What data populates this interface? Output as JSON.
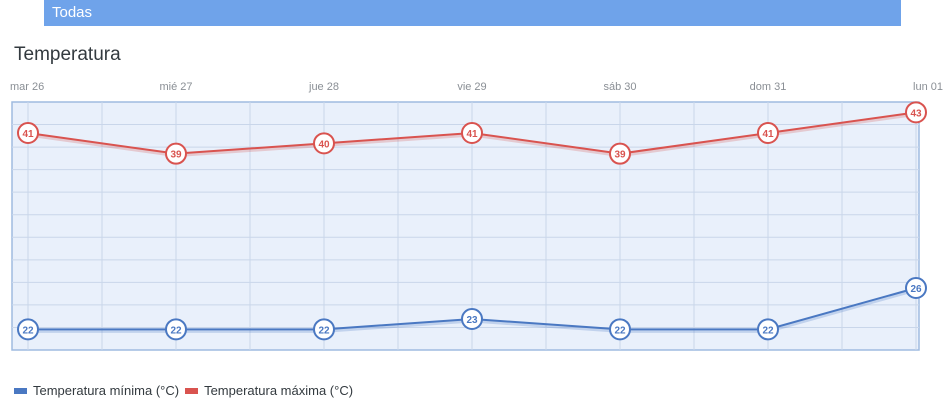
{
  "filter": {
    "label": "Todas"
  },
  "section_title": "Temperatura",
  "chart_data": {
    "type": "line",
    "title": "",
    "categories": [
      "mar 26",
      "mié 27",
      "jue 28",
      "vie 29",
      "sáb 30",
      "dom 31",
      "lun 01"
    ],
    "ylim": [
      20,
      44
    ],
    "grid": true,
    "legend_position": "bottom-left",
    "series": [
      {
        "name": "Temperatura mínima (°C)",
        "color": "#4a78c2",
        "values": [
          22,
          22,
          22,
          23,
          22,
          22,
          26
        ]
      },
      {
        "name": "Temperatura máxima (°C)",
        "color": "#d9534f",
        "values": [
          41,
          39,
          40,
          41,
          39,
          41,
          43
        ]
      }
    ]
  }
}
